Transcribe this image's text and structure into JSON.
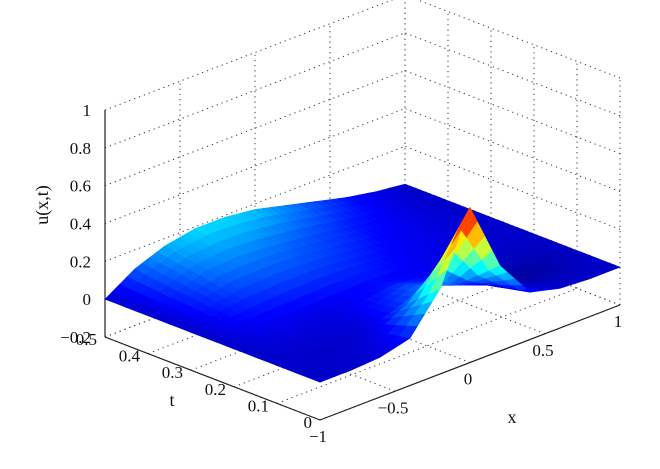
{
  "chart_data": {
    "type": "surface",
    "title": "",
    "xlabel": "x",
    "ylabel": "t",
    "zlabel": "u(x,t)",
    "xlim": [
      -1,
      1
    ],
    "ylim": [
      0,
      0.5
    ],
    "zlim": [
      -0.2,
      1
    ],
    "x_ticks": [
      "−1",
      "−0.5",
      "0",
      "0.5",
      "1"
    ],
    "y_ticks": [
      "0",
      "0.1",
      "0.2",
      "0.3",
      "0.4",
      "0.5"
    ],
    "z_ticks": [
      "−0.2",
      "0",
      "0.2",
      "0.4",
      "0.6",
      "0.8",
      "1"
    ],
    "grid": true,
    "colormap": "jet",
    "colors": {
      "surface_low": "#1a237e",
      "surface_mid": "#4fc3f7",
      "surface_high": "#b71c1c"
    },
    "x": [
      -1,
      -0.8,
      -0.6,
      -0.4,
      -0.2,
      0,
      0.2,
      0.4,
      0.6,
      0.8,
      1
    ],
    "t": [
      0,
      0.1,
      0.2,
      0.3,
      0.4,
      0.5
    ],
    "u": [
      [
        0.0,
        0.0,
        0.01,
        0.05,
        0.25,
        0.62,
        0.25,
        0.05,
        0.01,
        0.0,
        0.0
      ],
      [
        0.0,
        0.0,
        0.0,
        0.01,
        0.06,
        0.12,
        0.06,
        0.0,
        -0.03,
        -0.02,
        0.0
      ],
      [
        0.0,
        0.02,
        0.02,
        0.02,
        0.03,
        0.04,
        0.03,
        0.02,
        0.01,
        0.0,
        0.0
      ],
      [
        0.0,
        0.05,
        0.07,
        0.08,
        0.08,
        0.07,
        0.05,
        0.03,
        0.02,
        0.01,
        0.0
      ],
      [
        0.0,
        0.07,
        0.12,
        0.13,
        0.12,
        0.1,
        0.08,
        0.05,
        0.03,
        0.01,
        0.0
      ],
      [
        0.0,
        0.1,
        0.16,
        0.19,
        0.19,
        0.17,
        0.13,
        0.09,
        0.05,
        0.02,
        0.0
      ]
    ]
  }
}
